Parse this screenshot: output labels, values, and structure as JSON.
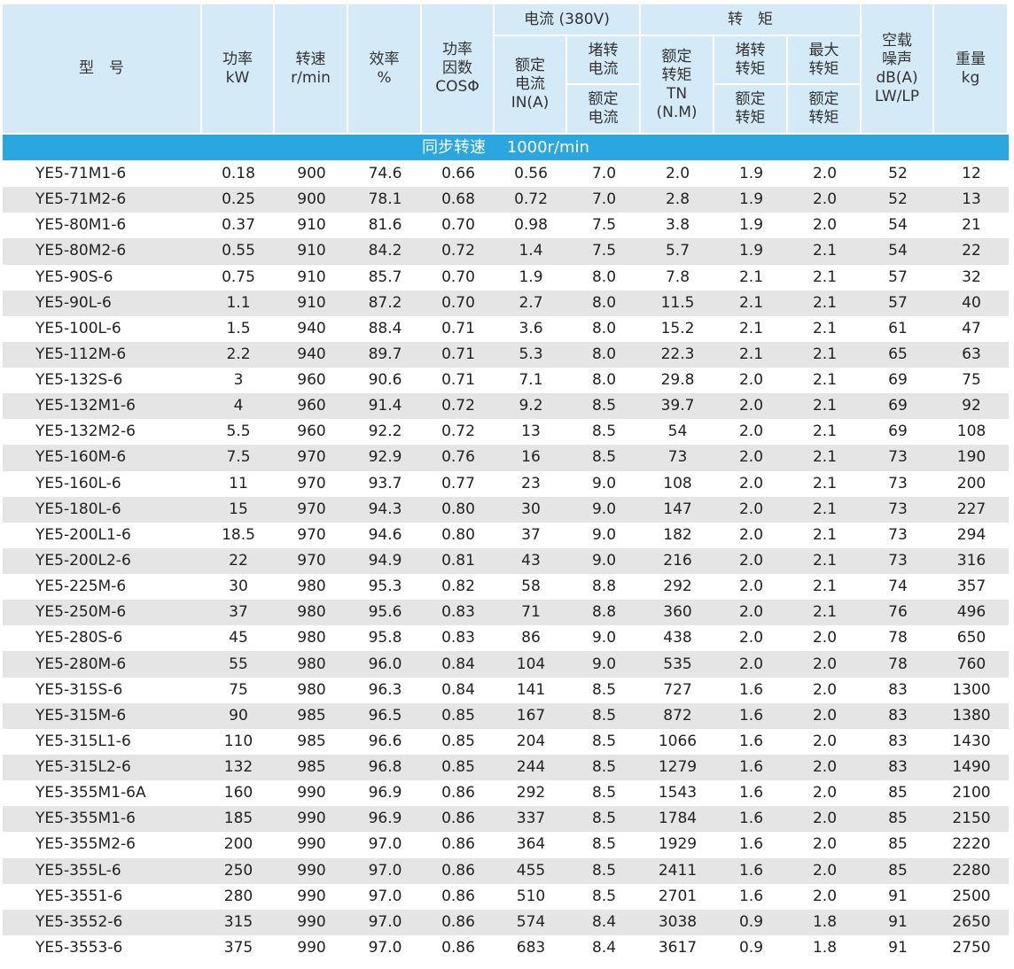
{
  "header": {
    "cells": [
      {
        "lines": [
          "型　号"
        ]
      },
      {
        "lines": [
          "功率",
          "kW"
        ]
      },
      {
        "lines": [
          "转速",
          "r/min"
        ]
      },
      {
        "lines": [
          "效率",
          "%"
        ]
      },
      {
        "lines": [
          "功率",
          "因数",
          "COSΦ"
        ]
      },
      {
        "lines": [
          "电流 (380V)"
        ]
      },
      {
        "lines": [
          "额定",
          "电流",
          "IN(A)"
        ]
      },
      {
        "lines": [
          "堵转",
          "电流"
        ]
      },
      {
        "lines": [
          "额定",
          "电流"
        ]
      },
      {
        "lines": [
          "转　矩"
        ]
      },
      {
        "lines": [
          "额定",
          "转矩",
          "TN",
          "(N.M)"
        ]
      },
      {
        "lines": [
          "堵转",
          "转矩"
        ]
      },
      {
        "lines": [
          "额定",
          "转矩"
        ]
      },
      {
        "lines": [
          "最大",
          "转矩"
        ]
      },
      {
        "lines": [
          "额定",
          "转矩"
        ]
      },
      {
        "lines": [
          "空载",
          "噪声",
          "dB(A)",
          "LW/LP"
        ]
      },
      {
        "lines": [
          "重量",
          "kg"
        ]
      }
    ]
  },
  "section": "同步转速　 1000r/min",
  "table": {
    "rows": [
      [
        "YE5-71M1-6",
        "0.18",
        "900",
        "74.6",
        "0.66",
        "0.56",
        "7.0",
        "2.0",
        "1.9",
        "2.0",
        "52",
        "12"
      ],
      [
        "YE5-71M2-6",
        "0.25",
        "900",
        "78.1",
        "0.68",
        "0.72",
        "7.0",
        "2.8",
        "1.9",
        "2.0",
        "52",
        "13"
      ],
      [
        "YE5-80M1-6",
        "0.37",
        "910",
        "81.6",
        "0.70",
        "0.98",
        "7.5",
        "3.8",
        "1.9",
        "2.0",
        "54",
        "21"
      ],
      [
        "YE5-80M2-6",
        "0.55",
        "910",
        "84.2",
        "0.72",
        "1.4",
        "7.5",
        "5.7",
        "1.9",
        "2.1",
        "54",
        "22"
      ],
      [
        "YE5-90S-6",
        "0.75",
        "910",
        "85.7",
        "0.70",
        "1.9",
        "8.0",
        "7.8",
        "2.1",
        "2.1",
        "57",
        "32"
      ],
      [
        "YE5-90L-6",
        "1.1",
        "910",
        "87.2",
        "0.70",
        "2.7",
        "8.0",
        "11.5",
        "2.1",
        "2.1",
        "57",
        "40"
      ],
      [
        "YE5-100L-6",
        "1.5",
        "940",
        "88.4",
        "0.71",
        "3.6",
        "8.0",
        "15.2",
        "2.1",
        "2.1",
        "61",
        "47"
      ],
      [
        "YE5-112M-6",
        "2.2",
        "940",
        "89.7",
        "0.71",
        "5.3",
        "8.0",
        "22.3",
        "2.1",
        "2.1",
        "65",
        "63"
      ],
      [
        "YE5-132S-6",
        "3",
        "960",
        "90.6",
        "0.71",
        "7.1",
        "8.0",
        "29.8",
        "2.0",
        "2.1",
        "69",
        "75"
      ],
      [
        "YE5-132M1-6",
        "4",
        "960",
        "91.4",
        "0.72",
        "9.2",
        "8.5",
        "39.7",
        "2.0",
        "2.1",
        "69",
        "92"
      ],
      [
        "YE5-132M2-6",
        "5.5",
        "960",
        "92.2",
        "0.72",
        "13",
        "8.5",
        "54",
        "2.0",
        "2.1",
        "69",
        "108"
      ],
      [
        "YE5-160M-6",
        "7.5",
        "970",
        "92.9",
        "0.76",
        "16",
        "8.5",
        "73",
        "2.0",
        "2.1",
        "73",
        "190"
      ],
      [
        "YE5-160L-6",
        "11",
        "970",
        "93.7",
        "0.77",
        "23",
        "9.0",
        "108",
        "2.0",
        "2.1",
        "73",
        "200"
      ],
      [
        "YE5-180L-6",
        "15",
        "970",
        "94.3",
        "0.80",
        "30",
        "9.0",
        "147",
        "2.0",
        "2.1",
        "73",
        "227"
      ],
      [
        "YE5-200L1-6",
        "18.5",
        "970",
        "94.6",
        "0.80",
        "37",
        "9.0",
        "182",
        "2.0",
        "2.1",
        "73",
        "294"
      ],
      [
        "YE5-200L2-6",
        "22",
        "970",
        "94.9",
        "0.81",
        "43",
        "9.0",
        "216",
        "2.0",
        "2.1",
        "73",
        "316"
      ],
      [
        "YE5-225M-6",
        "30",
        "980",
        "95.3",
        "0.82",
        "58",
        "8.8",
        "292",
        "2.0",
        "2.1",
        "74",
        "357"
      ],
      [
        "YE5-250M-6",
        "37",
        "980",
        "95.6",
        "0.83",
        "71",
        "8.8",
        "360",
        "2.0",
        "2.1",
        "76",
        "496"
      ],
      [
        "YE5-280S-6",
        "45",
        "980",
        "95.8",
        "0.83",
        "86",
        "9.0",
        "438",
        "2.0",
        "2.0",
        "78",
        "650"
      ],
      [
        "YE5-280M-6",
        "55",
        "980",
        "96.0",
        "0.84",
        "104",
        "9.0",
        "535",
        "2.0",
        "2.0",
        "78",
        "760"
      ],
      [
        "YE5-315S-6",
        "75",
        "980",
        "96.3",
        "0.84",
        "141",
        "8.5",
        "727",
        "1.6",
        "2.0",
        "83",
        "1300"
      ],
      [
        "YE5-315M-6",
        "90",
        "985",
        "96.5",
        "0.85",
        "167",
        "8.5",
        "872",
        "1.6",
        "2.0",
        "83",
        "1380"
      ],
      [
        "YE5-315L1-6",
        "110",
        "985",
        "96.6",
        "0.85",
        "204",
        "8.5",
        "1066",
        "1.6",
        "2.0",
        "83",
        "1430"
      ],
      [
        "YE5-315L2-6",
        "132",
        "985",
        "96.8",
        "0.85",
        "244",
        "8.5",
        "1279",
        "1.6",
        "2.0",
        "83",
        "1490"
      ],
      [
        "YE5-355M1-6A",
        "160",
        "990",
        "96.9",
        "0.86",
        "292",
        "8.5",
        "1543",
        "1.6",
        "2.0",
        "85",
        "2100"
      ],
      [
        "YE5-355M1-6",
        "185",
        "990",
        "96.9",
        "0.86",
        "337",
        "8.5",
        "1784",
        "1.6",
        "2.0",
        "85",
        "2150"
      ],
      [
        "YE5-355M2-6",
        "200",
        "990",
        "97.0",
        "0.86",
        "364",
        "8.5",
        "1929",
        "1.6",
        "2.0",
        "85",
        "2220"
      ],
      [
        "YE5-355L-6",
        "250",
        "990",
        "97.0",
        "0.86",
        "455",
        "8.5",
        "2411",
        "1.6",
        "2.0",
        "85",
        "2280"
      ],
      [
        "YE5-3551-6",
        "280",
        "990",
        "97.0",
        "0.86",
        "510",
        "8.5",
        "2701",
        "1.6",
        "2.0",
        "91",
        "2500"
      ],
      [
        "YE5-3552-6",
        "315",
        "990",
        "97.0",
        "0.86",
        "574",
        "8.4",
        "3038",
        "0.9",
        "1.8",
        "91",
        "2650"
      ],
      [
        "YE5-3553-6",
        "375",
        "990",
        "97.0",
        "0.86",
        "683",
        "8.4",
        "3617",
        "0.9",
        "1.8",
        "91",
        "2750"
      ]
    ]
  }
}
